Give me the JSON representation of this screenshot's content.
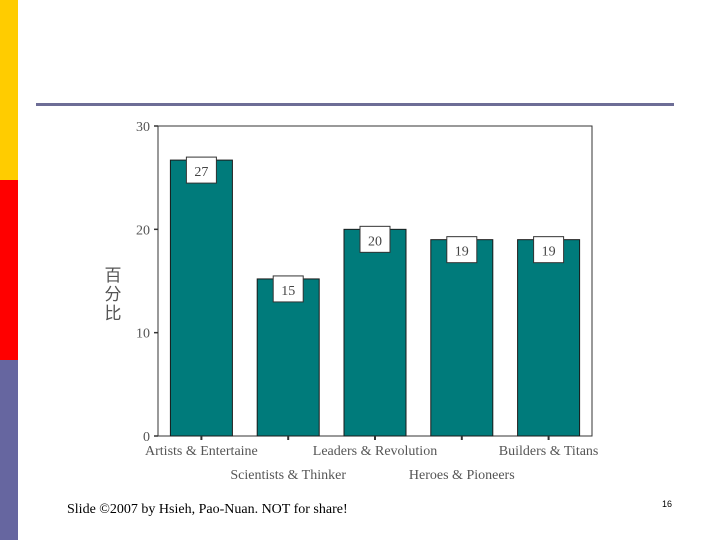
{
  "slide": {
    "footer": "Slide ©2007  by Hsieh, Pao-Nuan.  NOT for share!",
    "page_number": "16",
    "colors": {
      "yellow": "#ffcc00",
      "red": "#ff0000",
      "blue": "#6666a0",
      "rule": "#6d6d96"
    }
  },
  "chart_data": {
    "type": "bar",
    "ylabel": "百分比",
    "ylim": [
      0,
      30
    ],
    "yticks": [
      "0",
      "10",
      "20",
      "30"
    ],
    "categories": [
      "Artists & Entertaine",
      "Scientists & Thinker",
      "Leaders & Revolution",
      "Heroes & Pioneers",
      "Builders & Titans"
    ],
    "values": [
      26.7,
      15.2,
      20,
      19,
      19
    ],
    "data_labels": [
      "27",
      "15",
      "20",
      "19",
      "19"
    ],
    "bar_color": "#007b7b",
    "grid": false
  }
}
